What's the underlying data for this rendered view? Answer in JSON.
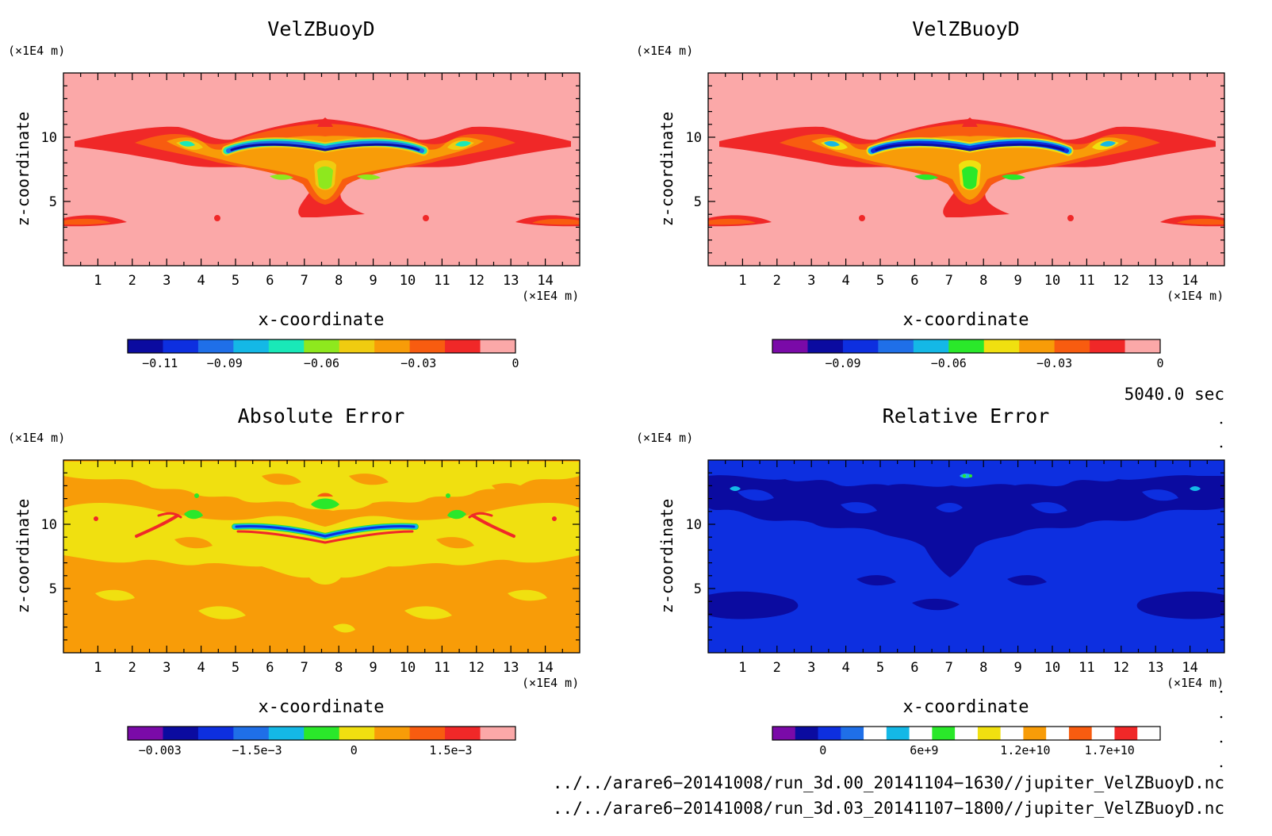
{
  "chart_data": [
    {
      "type": "heatmap",
      "title": "VelZBuoyD",
      "xlabel": "x-coordinate",
      "ylabel": "z-coordinate",
      "x_unit": "(×1E4 m)",
      "y_unit": "(×1E4 m)",
      "xlim": [
        0,
        15
      ],
      "ylim": [
        0,
        15
      ],
      "x_ticks": [
        "1",
        "2",
        "3",
        "4",
        "5",
        "6",
        "7",
        "8",
        "9",
        "10",
        "11",
        "12",
        "13",
        "14"
      ],
      "y_ticks": [
        "5",
        "10"
      ],
      "colorbar_range": [
        -0.12,
        0
      ],
      "colorbar_levels": [
        "#0b0ba0",
        "#0d2fe0",
        "#1f6fe8",
        "#14b8e6",
        "#19e8b8",
        "#8ee81e",
        "#f0cc10",
        "#f89c08",
        "#f85c10",
        "#f02828",
        "#fba8a8"
      ],
      "colorbar_labels": [
        {
          "v": -0.11,
          "t": "−0.11"
        },
        {
          "v": -0.09,
          "t": "−0.09"
        },
        {
          "v": -0.06,
          "t": "−0.06"
        },
        {
          "v": -0.03,
          "t": "−0.03"
        },
        {
          "v": 0,
          "t": "0"
        }
      ],
      "background_color": "#fba8a8"
    },
    {
      "type": "heatmap",
      "title": "VelZBuoyD",
      "xlabel": "x-coordinate",
      "ylabel": "z-coordinate",
      "x_unit": "(×1E4 m)",
      "y_unit": "(×1E4 m)",
      "xlim": [
        0,
        15
      ],
      "ylim": [
        0,
        15
      ],
      "x_ticks": [
        "1",
        "2",
        "3",
        "4",
        "5",
        "6",
        "7",
        "8",
        "9",
        "10",
        "11",
        "12",
        "13",
        "14"
      ],
      "y_ticks": [
        "5",
        "10"
      ],
      "colorbar_range": [
        -0.11,
        0
      ],
      "colorbar_levels": [
        "#7a0aa8",
        "#0b0ba0",
        "#0d2fe0",
        "#1f6fe8",
        "#14b8e6",
        "#2ae82a",
        "#f0e010",
        "#f89c08",
        "#f85c10",
        "#f02828",
        "#fba8a8"
      ],
      "colorbar_labels": [
        {
          "v": -0.09,
          "t": "−0.09"
        },
        {
          "v": -0.06,
          "t": "−0.06"
        },
        {
          "v": -0.03,
          "t": "−0.03"
        },
        {
          "v": 0,
          "t": "0"
        }
      ],
      "background_color": "#fba8a8"
    },
    {
      "type": "heatmap",
      "title": "Absolute Error",
      "xlabel": "x-coordinate",
      "ylabel": "z-coordinate",
      "x_unit": "(×1E4 m)",
      "y_unit": "(×1E4 m)",
      "xlim": [
        0,
        15
      ],
      "ylim": [
        0,
        15
      ],
      "x_ticks": [
        "1",
        "2",
        "3",
        "4",
        "5",
        "6",
        "7",
        "8",
        "9",
        "10",
        "11",
        "12",
        "13",
        "14"
      ],
      "y_ticks": [
        "5",
        "10"
      ],
      "colorbar_range": [
        -0.0035,
        0.0025
      ],
      "colorbar_levels": [
        "#7a0aa8",
        "#0b0ba0",
        "#0d2fe0",
        "#1f6fe8",
        "#14b8e6",
        "#2ae82a",
        "#f0e010",
        "#f89c08",
        "#f85c10",
        "#f02828",
        "#fba8a8"
      ],
      "colorbar_labels": [
        {
          "v": -0.003,
          "t": "−0.003"
        },
        {
          "v": -0.0015,
          "t": "−1.5e−3"
        },
        {
          "v": 0,
          "t": "0"
        },
        {
          "v": 0.0015,
          "t": "1.5e−3"
        }
      ],
      "background_color": "#f89c08"
    },
    {
      "type": "heatmap",
      "title": "Relative Error",
      "xlabel": "x-coordinate",
      "ylabel": "z-coordinate",
      "x_unit": "(×1E4 m)",
      "y_unit": "(×1E4 m)",
      "xlim": [
        0,
        15
      ],
      "ylim": [
        0,
        15
      ],
      "x_ticks": [
        "1",
        "2",
        "3",
        "4",
        "5",
        "6",
        "7",
        "8",
        "9",
        "10",
        "11",
        "12",
        "13",
        "14"
      ],
      "y_ticks": [
        "5",
        "10"
      ],
      "colorbar_range": [
        -3000000000,
        20000000000
      ],
      "colorbar_levels": [
        "#7a0aa8",
        "#0b0ba0",
        "#0d2fe0",
        "#1f6fe8",
        "#ffffff",
        "#14b8e6",
        "#ffffff",
        "#2ae82a",
        "#ffffff",
        "#f0e010",
        "#ffffff",
        "#f89c08",
        "#ffffff",
        "#f85c10",
        "#ffffff",
        "#f02828",
        "#ffffff"
      ],
      "colorbar_labels": [
        {
          "v": 0,
          "t": "0"
        },
        {
          "v": 6000000000,
          "t": "6e+9"
        },
        {
          "v": 12000000000,
          "t": "1.2e+10"
        },
        {
          "v": 17000000000,
          "t": "1.7e+10"
        }
      ],
      "background_color": "#0d2fe0"
    }
  ],
  "annotations": {
    "time": "5040.0 sec",
    "file1": "../../arare6−20141008/run_3d.00_20141104−1630//jupiter_VelZBuoyD.nc",
    "file2": "../../arare6−20141008/run_3d.03_20141107−1800//jupiter_VelZBuoyD.nc"
  }
}
